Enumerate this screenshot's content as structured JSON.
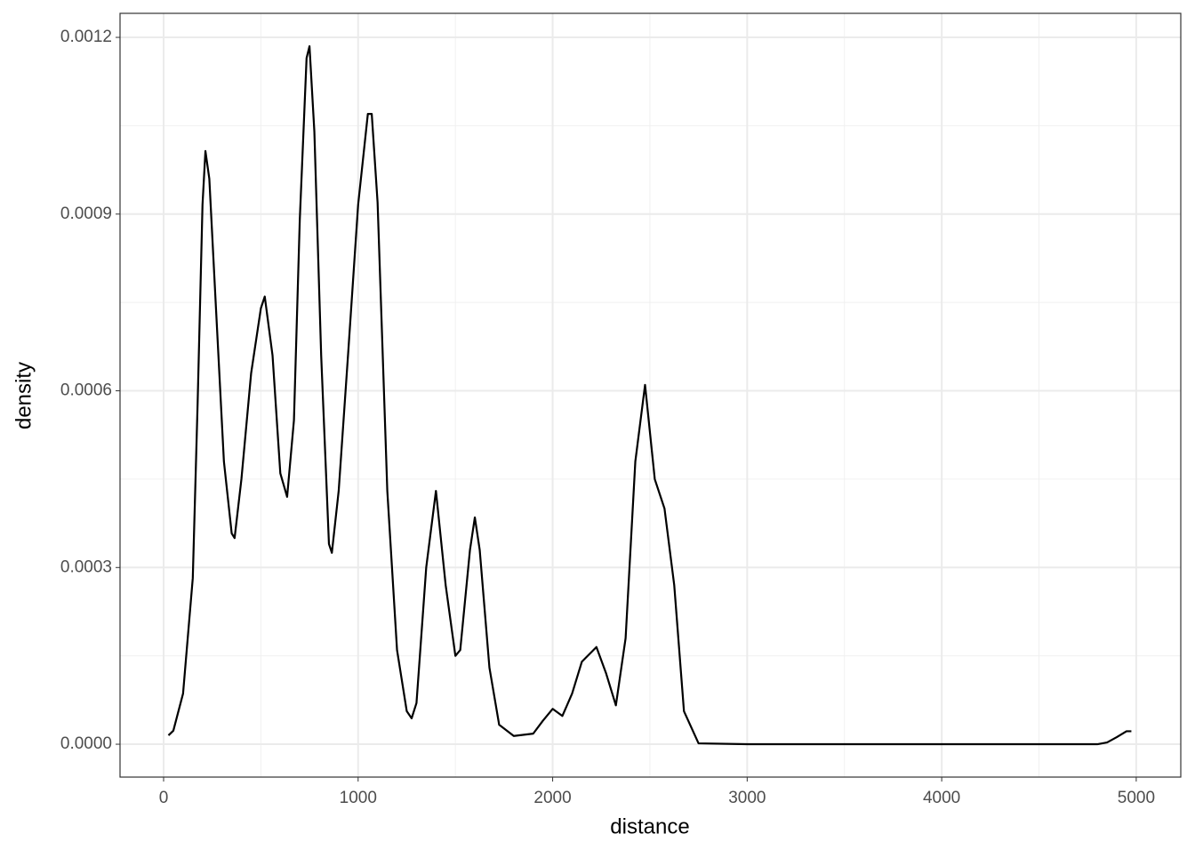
{
  "chart_data": {
    "type": "line",
    "xlabel": "distance",
    "ylabel": "density",
    "x": [
      25,
      50,
      100,
      150,
      175,
      200,
      215,
      235,
      270,
      310,
      350,
      365,
      400,
      450,
      500,
      520,
      560,
      600,
      635,
      670,
      700,
      735,
      750,
      775,
      810,
      850,
      865,
      900,
      950,
      1000,
      1050,
      1070,
      1100,
      1150,
      1200,
      1250,
      1275,
      1300,
      1350,
      1400,
      1450,
      1500,
      1525,
      1575,
      1600,
      1625,
      1675,
      1725,
      1800,
      1900,
      1950,
      2000,
      2050,
      2100,
      2150,
      2225,
      2275,
      2325,
      2375,
      2425,
      2475,
      2525,
      2575,
      2625,
      2675,
      2750,
      3000,
      3500,
      4000,
      4500,
      4800,
      4850,
      4900,
      4950,
      4975
    ],
    "series": [
      {
        "name": "density",
        "color": "#000000",
        "values": [
          1.5e-05,
          2.3e-05,
          8.6e-05,
          0.000282,
          0.00058,
          0.000916,
          0.001007,
          0.00096,
          0.000735,
          0.00048,
          0.000358,
          0.00035,
          0.00045,
          0.00063,
          0.00074,
          0.00076,
          0.00066,
          0.00046,
          0.00042,
          0.00055,
          0.00089,
          0.001165,
          0.001185,
          0.00104,
          0.00066,
          0.00034,
          0.000325,
          0.00043,
          0.00067,
          0.000916,
          0.00107,
          0.00107,
          0.00092,
          0.00043,
          0.00016,
          5.6e-05,
          4.4e-05,
          7e-05,
          0.0003,
          0.00043,
          0.00027,
          0.00015,
          0.00016,
          0.00033,
          0.000385,
          0.00033,
          0.00013,
          3.3e-05,
          1.4e-05,
          1.8e-05,
          4e-05,
          6e-05,
          4.8e-05,
          8.6e-05,
          0.00014,
          0.000165,
          0.00012,
          6.6e-05,
          0.00018,
          0.00048,
          0.00061,
          0.00045,
          0.0004,
          0.00027,
          5.6e-05,
          1.5e-06,
          0,
          0,
          0,
          0,
          0,
          3e-06,
          1.2e-05,
          2.2e-05,
          2.2e-05
        ]
      }
    ],
    "xlim": [
      -224,
      5229
    ],
    "xticks": [
      0,
      1000,
      2000,
      3000,
      4000,
      5000
    ],
    "ylim": [
      -5.58e-05,
      0.0012408
    ],
    "yticks": [
      {
        "value": 0,
        "label": "0.0000"
      },
      {
        "value": 0.0003,
        "label": "0.0003"
      },
      {
        "value": 0.0006,
        "label": "0.0006"
      },
      {
        "value": 0.0009,
        "label": "0.0009"
      },
      {
        "value": 0.0012,
        "label": "0.0012"
      }
    ],
    "grid": true
  }
}
